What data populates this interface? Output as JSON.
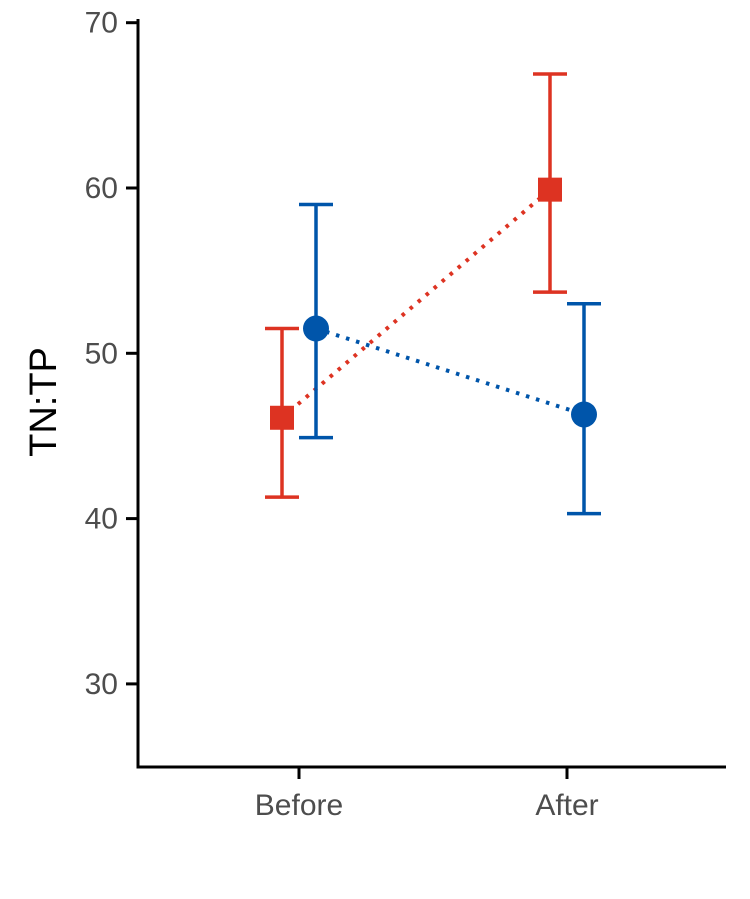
{
  "chart_data": {
    "type": "scatter",
    "title": "",
    "xlabel": "",
    "ylabel": "TN:TP",
    "categories": [
      "Before",
      "After"
    ],
    "ylim": [
      25,
      70
    ],
    "yticks": [
      30,
      40,
      50,
      60,
      70
    ],
    "grid": false,
    "legend": "none",
    "connector": "dotted",
    "series": [
      {
        "color": "#dd3322",
        "marker": "square",
        "dodge": "left",
        "values": [
          46.1,
          59.9
        ],
        "lower": [
          41.3,
          53.7
        ],
        "upper": [
          51.5,
          66.9
        ]
      },
      {
        "color": "#0055aa",
        "marker": "circle",
        "dodge": "right",
        "values": [
          51.5,
          46.3
        ],
        "lower": [
          44.9,
          40.3
        ],
        "upper": [
          59.0,
          53.0
        ]
      }
    ]
  }
}
